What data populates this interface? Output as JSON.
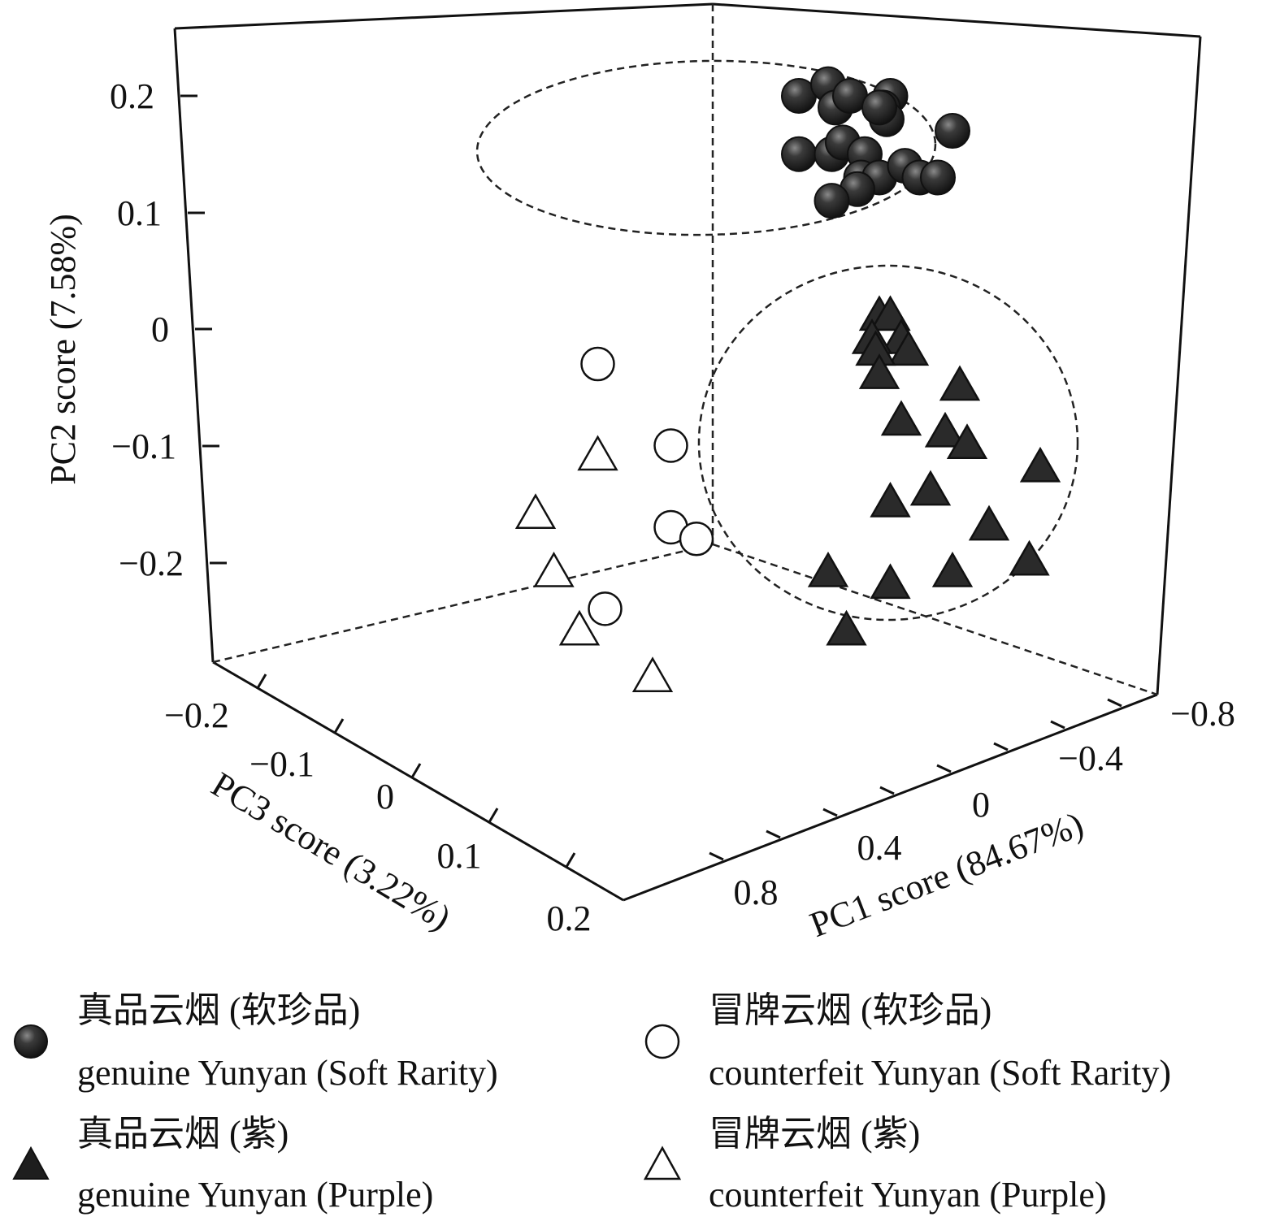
{
  "chart_data": {
    "type": "scatter",
    "projection": "3d",
    "axes": {
      "x": {
        "label": "PC1 score (84.67%)",
        "ticks": [
          "0.8",
          "0.4",
          "0",
          "−0.4",
          "−0.8"
        ],
        "range": [
          0.8,
          -0.8
        ]
      },
      "y": {
        "label": "PC2 score (7.58%)",
        "ticks": [
          "0.2",
          "0.1",
          "0",
          "−0.1",
          "−0.2"
        ],
        "range": [
          -0.25,
          0.25
        ]
      },
      "z": {
        "label": "PC3 score (3.22%)",
        "ticks": [
          "−0.2",
          "−0.1",
          "0",
          "0.1",
          "0.2"
        ],
        "range": [
          -0.2,
          0.2
        ]
      }
    },
    "series": [
      {
        "name": "genuine Yunyan (Soft Rarity)",
        "name_cn": "真品云烟 (软珍品)",
        "marker": "circle",
        "filled": true,
        "points": [
          {
            "pc1": -0.2,
            "pc2": 0.2,
            "pc3": -0.05
          },
          {
            "pc1": -0.28,
            "pc2": 0.21,
            "pc3": -0.05
          },
          {
            "pc1": -0.3,
            "pc2": 0.19,
            "pc3": -0.05
          },
          {
            "pc1": -0.34,
            "pc2": 0.2,
            "pc3": -0.05
          },
          {
            "pc1": -0.45,
            "pc2": 0.2,
            "pc3": -0.05
          },
          {
            "pc1": -0.43,
            "pc2": 0.19,
            "pc3": -0.05
          },
          {
            "pc1": -0.44,
            "pc2": 0.18,
            "pc3": -0.05
          },
          {
            "pc1": -0.42,
            "pc2": 0.19,
            "pc3": -0.05
          },
          {
            "pc1": -0.62,
            "pc2": 0.17,
            "pc3": -0.05
          },
          {
            "pc1": -0.2,
            "pc2": 0.15,
            "pc3": -0.05
          },
          {
            "pc1": -0.29,
            "pc2": 0.15,
            "pc3": -0.05
          },
          {
            "pc1": -0.32,
            "pc2": 0.16,
            "pc3": -0.05
          },
          {
            "pc1": -0.38,
            "pc2": 0.15,
            "pc3": -0.05
          },
          {
            "pc1": -0.37,
            "pc2": 0.13,
            "pc3": -0.05
          },
          {
            "pc1": -0.42,
            "pc2": 0.13,
            "pc3": -0.05
          },
          {
            "pc1": -0.49,
            "pc2": 0.14,
            "pc3": -0.05
          },
          {
            "pc1": -0.53,
            "pc2": 0.13,
            "pc3": -0.05
          },
          {
            "pc1": -0.58,
            "pc2": 0.13,
            "pc3": -0.05
          },
          {
            "pc1": -0.36,
            "pc2": 0.12,
            "pc3": -0.05
          },
          {
            "pc1": -0.29,
            "pc2": 0.11,
            "pc3": -0.05
          }
        ]
      },
      {
        "name": "genuine Yunyan (Purple)",
        "name_cn": "真品云烟 (紫)",
        "marker": "triangle",
        "filled": true,
        "points": [
          {
            "pc1": -0.42,
            "pc2": 0.01,
            "pc3": -0.05
          },
          {
            "pc1": -0.45,
            "pc2": 0.01,
            "pc3": -0.05
          },
          {
            "pc1": -0.48,
            "pc2": -0.01,
            "pc3": -0.05
          },
          {
            "pc1": -0.5,
            "pc2": -0.02,
            "pc3": -0.05
          },
          {
            "pc1": -0.4,
            "pc2": -0.01,
            "pc3": -0.05
          },
          {
            "pc1": -0.41,
            "pc2": -0.02,
            "pc3": -0.05
          },
          {
            "pc1": -0.42,
            "pc2": -0.04,
            "pc3": -0.05
          },
          {
            "pc1": -0.64,
            "pc2": -0.05,
            "pc3": -0.05
          },
          {
            "pc1": -0.48,
            "pc2": -0.08,
            "pc3": -0.05
          },
          {
            "pc1": -0.6,
            "pc2": -0.09,
            "pc3": -0.05
          },
          {
            "pc1": -0.66,
            "pc2": -0.1,
            "pc3": -0.05
          },
          {
            "pc1": -0.86,
            "pc2": -0.12,
            "pc3": -0.05
          },
          {
            "pc1": -0.45,
            "pc2": -0.15,
            "pc3": -0.05
          },
          {
            "pc1": -0.56,
            "pc2": -0.14,
            "pc3": -0.05
          },
          {
            "pc1": -0.72,
            "pc2": -0.17,
            "pc3": -0.05
          },
          {
            "pc1": -0.83,
            "pc2": -0.2,
            "pc3": -0.05
          },
          {
            "pc1": -0.28,
            "pc2": -0.21,
            "pc3": -0.05
          },
          {
            "pc1": -0.45,
            "pc2": -0.22,
            "pc3": -0.05
          },
          {
            "pc1": -0.62,
            "pc2": -0.21,
            "pc3": -0.05
          },
          {
            "pc1": -0.33,
            "pc2": -0.26,
            "pc3": -0.05
          }
        ]
      },
      {
        "name": "counterfeit Yunyan (Soft Rarity)",
        "name_cn": "冒牌云烟 (软珍品)",
        "marker": "circle",
        "filled": false,
        "points": [
          {
            "pc1": 0.35,
            "pc2": -0.03,
            "pc3": -0.05
          },
          {
            "pc1": 0.15,
            "pc2": -0.1,
            "pc3": -0.05
          },
          {
            "pc1": 0.15,
            "pc2": -0.17,
            "pc3": -0.05
          },
          {
            "pc1": 0.08,
            "pc2": -0.18,
            "pc3": -0.05
          },
          {
            "pc1": 0.33,
            "pc2": -0.24,
            "pc3": -0.05
          }
        ]
      },
      {
        "name": "counterfeit Yunyan (Purple)",
        "name_cn": "冒牌云烟 (紫)",
        "marker": "triangle",
        "filled": false,
        "points": [
          {
            "pc1": 0.35,
            "pc2": -0.11,
            "pc3": -0.05
          },
          {
            "pc1": 0.52,
            "pc2": -0.16,
            "pc3": -0.05
          },
          {
            "pc1": 0.47,
            "pc2": -0.21,
            "pc3": -0.05
          },
          {
            "pc1": 0.4,
            "pc2": -0.26,
            "pc3": -0.05
          },
          {
            "pc1": 0.2,
            "pc2": -0.3,
            "pc3": -0.05
          }
        ]
      }
    ],
    "ellipses": [
      "genuine Yunyan (Soft Rarity)",
      "genuine Yunyan (Purple)"
    ],
    "legend_placement": "bottom",
    "grid": false
  },
  "legend": [
    {
      "cn": "真品云烟 (软珍品)",
      "en": "genuine Yunyan (Soft Rarity)",
      "marker": "circle",
      "filled": true
    },
    {
      "cn": "冒牌云烟 (软珍品)",
      "en": "counterfeit Yunyan (Soft Rarity)",
      "marker": "circle",
      "filled": false
    },
    {
      "cn": "真品云烟 (紫)",
      "en": "genuine Yunyan (Purple)",
      "marker": "triangle",
      "filled": true
    },
    {
      "cn": "冒牌云烟 (紫)",
      "en": "counterfeit Yunyan (Purple)",
      "marker": "triangle",
      "filled": false
    }
  ],
  "colors": {
    "filled": "#2a2a2a",
    "outline": "#111111",
    "open_fill": "#ffffff"
  }
}
